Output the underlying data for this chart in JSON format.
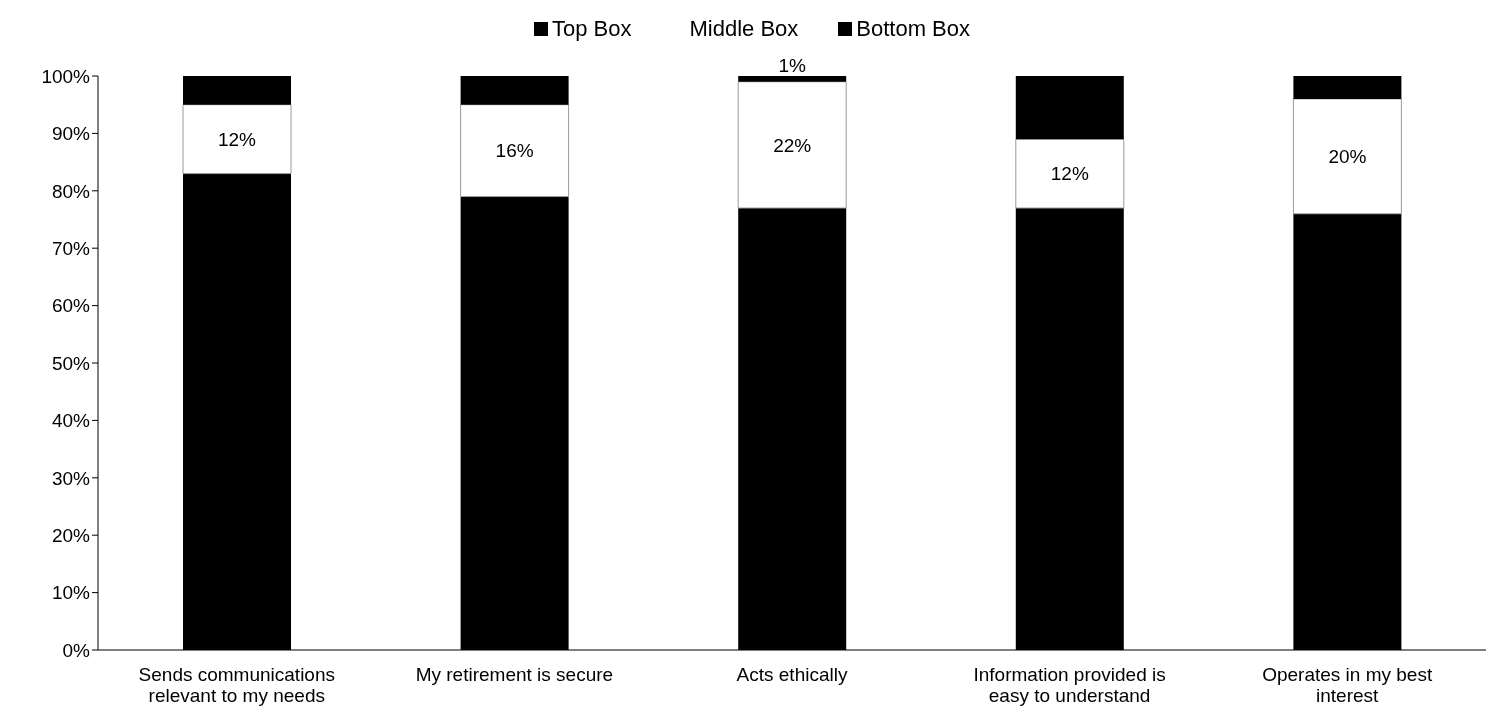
{
  "chart_data": {
    "type": "bar",
    "stacked": true,
    "categories": [
      "Sends communications relevant to my needs",
      "My retirement is secure",
      "Acts ethically",
      "Information provided is easy to understand",
      "Operates in my best interest"
    ],
    "series": [
      {
        "name": "Top Box",
        "color": "#000000",
        "values": [
          83,
          79,
          77,
          77,
          76
        ]
      },
      {
        "name": "Middle Box",
        "color": "#ffffff",
        "values": [
          12,
          16,
          22,
          12,
          20
        ],
        "value_labels": [
          "12%",
          "16%",
          "22%",
          "12%",
          "20%"
        ]
      },
      {
        "name": "Bottom Box",
        "color": "#000000",
        "values": [
          5,
          5,
          1,
          11,
          4
        ],
        "value_labels": [
          null,
          null,
          "1%",
          null,
          null
        ]
      }
    ],
    "ylim": [
      0,
      100
    ],
    "yticks": [
      {
        "value": 0,
        "label": "0%"
      },
      {
        "value": 10,
        "label": "10%"
      },
      {
        "value": 20,
        "label": "20%"
      },
      {
        "value": 30,
        "label": "30%"
      },
      {
        "value": 40,
        "label": "40%"
      },
      {
        "value": 50,
        "label": "50%"
      },
      {
        "value": 60,
        "label": "60%"
      },
      {
        "value": 70,
        "label": "70%"
      },
      {
        "value": 80,
        "label": "80%"
      },
      {
        "value": 90,
        "label": "90%"
      },
      {
        "value": 100,
        "label": "100%"
      }
    ],
    "grid": false,
    "legend": "top"
  }
}
